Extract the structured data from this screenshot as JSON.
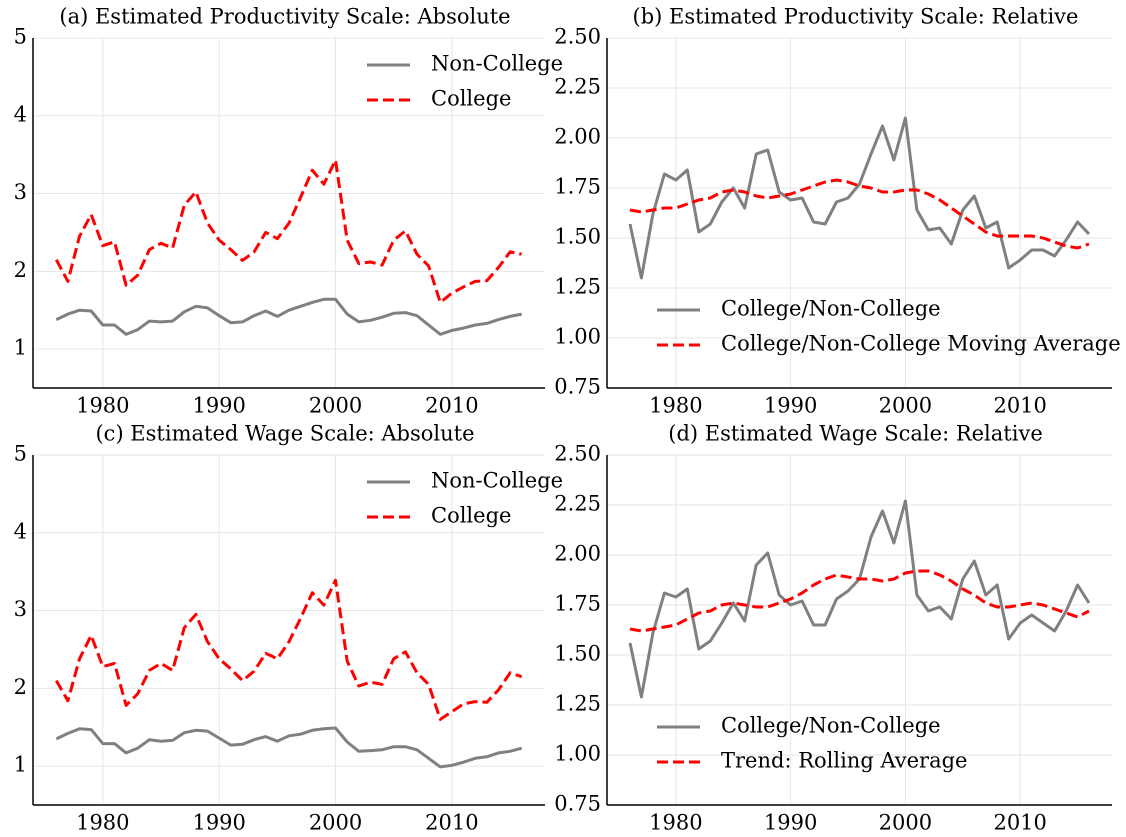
{
  "chart_data": [
    {
      "type": "line",
      "title": "(a) Estimated Productivity Scale: Absolute",
      "x": [
        1976,
        1977,
        1978,
        1979,
        1980,
        1981,
        1982,
        1983,
        1984,
        1985,
        1986,
        1987,
        1988,
        1989,
        1990,
        1991,
        1992,
        1993,
        1994,
        1995,
        1996,
        1997,
        1998,
        1999,
        2000,
        2001,
        2002,
        2003,
        2004,
        2005,
        2006,
        2007,
        2008,
        2009,
        2010,
        2011,
        2012,
        2013,
        2014,
        2015,
        2016
      ],
      "series": [
        {
          "name": "Non-College",
          "color": "#808080",
          "linestyle": "solid",
          "values": [
            1.38,
            1.45,
            1.5,
            1.49,
            1.31,
            1.31,
            1.19,
            1.25,
            1.36,
            1.35,
            1.36,
            1.48,
            1.55,
            1.53,
            1.43,
            1.34,
            1.35,
            1.43,
            1.49,
            1.42,
            1.5,
            1.55,
            1.6,
            1.64,
            1.64,
            1.45,
            1.35,
            1.37,
            1.41,
            1.46,
            1.47,
            1.43,
            1.31,
            1.19,
            1.24,
            1.27,
            1.31,
            1.33,
            1.38,
            1.42,
            1.45
          ]
        },
        {
          "name": "College",
          "color": "#ff0000",
          "linestyle": "dashed",
          "values": [
            2.15,
            1.87,
            2.45,
            2.73,
            2.33,
            2.38,
            1.82,
            1.95,
            2.28,
            2.36,
            2.3,
            2.85,
            3.02,
            2.62,
            2.4,
            2.28,
            2.14,
            2.25,
            2.5,
            2.42,
            2.62,
            2.95,
            3.3,
            3.12,
            3.43,
            2.4,
            2.1,
            2.12,
            2.08,
            2.4,
            2.52,
            2.22,
            2.07,
            1.6,
            1.72,
            1.8,
            1.87,
            1.88,
            2.05,
            2.25,
            2.22
          ]
        }
      ],
      "xlim": [
        1974,
        2018
      ],
      "xticks": [
        1980,
        1990,
        2000,
        2010
      ],
      "ylim": [
        0.5,
        5
      ],
      "yticks": [
        1,
        2,
        3,
        4,
        5
      ],
      "grid": true,
      "legend": "upper right"
    },
    {
      "type": "line",
      "title": "(b) Estimated Productivity Scale: Relative",
      "x": [
        1976,
        1977,
        1978,
        1979,
        1980,
        1981,
        1982,
        1983,
        1984,
        1985,
        1986,
        1987,
        1988,
        1989,
        1990,
        1991,
        1992,
        1993,
        1994,
        1995,
        1996,
        1997,
        1998,
        1999,
        2000,
        2001,
        2002,
        2003,
        2004,
        2005,
        2006,
        2007,
        2008,
        2009,
        2010,
        2011,
        2012,
        2013,
        2014,
        2015,
        2016
      ],
      "series": [
        {
          "name": "College/Non-College",
          "color": "#808080",
          "linestyle": "solid",
          "values": [
            1.57,
            1.3,
            1.62,
            1.82,
            1.79,
            1.84,
            1.53,
            1.57,
            1.68,
            1.75,
            1.65,
            1.92,
            1.94,
            1.73,
            1.69,
            1.7,
            1.58,
            1.57,
            1.68,
            1.7,
            1.77,
            1.92,
            2.06,
            1.89,
            2.1,
            1.64,
            1.54,
            1.55,
            1.47,
            1.64,
            1.71,
            1.55,
            1.58,
            1.35,
            1.39,
            1.44,
            1.44,
            1.41,
            1.49,
            1.58,
            1.52
          ]
        },
        {
          "name": "College/Non-College Moving Average",
          "color": "#ff0000",
          "linestyle": "dashed",
          "values": [
            1.64,
            1.63,
            1.64,
            1.65,
            1.65,
            1.67,
            1.69,
            1.7,
            1.73,
            1.74,
            1.73,
            1.71,
            1.7,
            1.71,
            1.72,
            1.74,
            1.76,
            1.78,
            1.79,
            1.78,
            1.76,
            1.75,
            1.73,
            1.73,
            1.74,
            1.74,
            1.72,
            1.69,
            1.65,
            1.61,
            1.57,
            1.53,
            1.51,
            1.51,
            1.51,
            1.51,
            1.5,
            1.48,
            1.46,
            1.45,
            1.47
          ]
        }
      ],
      "xlim": [
        1974,
        2018
      ],
      "xticks": [
        1980,
        1990,
        2000,
        2010
      ],
      "ylim": [
        0.75,
        2.5
      ],
      "yticks": [
        {
          "value": 0.75,
          "label": "0.75"
        },
        {
          "value": 1,
          "label": "1.00"
        },
        {
          "value": 1.25,
          "label": "1.25"
        },
        {
          "value": 1.5,
          "label": "1.50"
        },
        {
          "value": 1.75,
          "label": "1.75"
        },
        {
          "value": 2,
          "label": "2.00"
        },
        {
          "value": 2.25,
          "label": "2.25"
        },
        {
          "value": 2.5,
          "label": "2.50"
        }
      ],
      "grid": true,
      "legend": "lower left"
    },
    {
      "type": "line",
      "title": "(c) Estimated Wage Scale: Absolute",
      "x": [
        1976,
        1977,
        1978,
        1979,
        1980,
        1981,
        1982,
        1983,
        1984,
        1985,
        1986,
        1987,
        1988,
        1989,
        1990,
        1991,
        1992,
        1993,
        1994,
        1995,
        1996,
        1997,
        1998,
        1999,
        2000,
        2001,
        2002,
        2003,
        2004,
        2005,
        2006,
        2007,
        2008,
        2009,
        2010,
        2011,
        2012,
        2013,
        2014,
        2015,
        2016
      ],
      "series": [
        {
          "name": "Non-College",
          "color": "#808080",
          "linestyle": "solid",
          "values": [
            1.35,
            1.42,
            1.48,
            1.47,
            1.29,
            1.29,
            1.17,
            1.23,
            1.34,
            1.32,
            1.33,
            1.43,
            1.46,
            1.45,
            1.36,
            1.27,
            1.28,
            1.34,
            1.38,
            1.32,
            1.39,
            1.41,
            1.46,
            1.48,
            1.49,
            1.31,
            1.19,
            1.2,
            1.21,
            1.25,
            1.25,
            1.21,
            1.1,
            0.99,
            1.01,
            1.05,
            1.1,
            1.12,
            1.17,
            1.19,
            1.23
          ]
        },
        {
          "name": "College",
          "color": "#ff0000",
          "linestyle": "dashed",
          "values": [
            2.1,
            1.84,
            2.38,
            2.68,
            2.28,
            2.32,
            1.78,
            1.93,
            2.23,
            2.32,
            2.23,
            2.78,
            2.95,
            2.6,
            2.38,
            2.25,
            2.1,
            2.22,
            2.45,
            2.38,
            2.6,
            2.9,
            3.23,
            3.07,
            3.39,
            2.35,
            2.03,
            2.08,
            2.05,
            2.38,
            2.47,
            2.2,
            2.05,
            1.6,
            1.7,
            1.8,
            1.83,
            1.82,
            1.98,
            2.2,
            2.15
          ]
        }
      ],
      "xlim": [
        1974,
        2018
      ],
      "xticks": [
        1980,
        1990,
        2000,
        2010
      ],
      "ylim": [
        0.5,
        5
      ],
      "yticks": [
        1,
        2,
        3,
        4,
        5
      ],
      "grid": true,
      "legend": "upper right"
    },
    {
      "type": "line",
      "title": "(d) Estimated Wage Scale: Relative",
      "x": [
        1976,
        1977,
        1978,
        1979,
        1980,
        1981,
        1982,
        1983,
        1984,
        1985,
        1986,
        1987,
        1988,
        1989,
        1990,
        1991,
        1992,
        1993,
        1994,
        1995,
        1996,
        1997,
        1998,
        1999,
        2000,
        2001,
        2002,
        2003,
        2004,
        2005,
        2006,
        2007,
        2008,
        2009,
        2010,
        2011,
        2012,
        2013,
        2014,
        2015,
        2016
      ],
      "series": [
        {
          "name": "College/Non-College",
          "color": "#808080",
          "linestyle": "solid",
          "values": [
            1.56,
            1.29,
            1.61,
            1.81,
            1.79,
            1.83,
            1.53,
            1.57,
            1.66,
            1.76,
            1.67,
            1.95,
            2.01,
            1.8,
            1.75,
            1.77,
            1.65,
            1.65,
            1.78,
            1.82,
            1.88,
            2.09,
            2.22,
            2.06,
            2.27,
            1.8,
            1.72,
            1.74,
            1.68,
            1.88,
            1.97,
            1.8,
            1.85,
            1.58,
            1.66,
            1.7,
            1.66,
            1.62,
            1.72,
            1.85,
            1.76
          ]
        },
        {
          "name": "Trend: Rolling Average",
          "color": "#ff0000",
          "linestyle": "dashed",
          "values": [
            1.63,
            1.62,
            1.63,
            1.64,
            1.65,
            1.68,
            1.71,
            1.72,
            1.75,
            1.76,
            1.75,
            1.74,
            1.74,
            1.76,
            1.78,
            1.81,
            1.85,
            1.88,
            1.9,
            1.89,
            1.88,
            1.88,
            1.87,
            1.88,
            1.91,
            1.92,
            1.92,
            1.9,
            1.87,
            1.83,
            1.8,
            1.76,
            1.74,
            1.74,
            1.75,
            1.76,
            1.75,
            1.73,
            1.71,
            1.69,
            1.72
          ]
        }
      ],
      "xlim": [
        1974,
        2018
      ],
      "xticks": [
        1980,
        1990,
        2000,
        2010
      ],
      "ylim": [
        0.75,
        2.5
      ],
      "yticks": [
        {
          "value": 0.75,
          "label": "0.75"
        },
        {
          "value": 1,
          "label": "1.00"
        },
        {
          "value": 1.25,
          "label": "1.25"
        },
        {
          "value": 1.5,
          "label": "1.50"
        },
        {
          "value": 1.75,
          "label": "1.75"
        },
        {
          "value": 2,
          "label": "2.00"
        },
        {
          "value": 2.25,
          "label": "2.25"
        },
        {
          "value": 2.5,
          "label": "2.50"
        }
      ],
      "grid": true,
      "legend": "lower left"
    }
  ]
}
